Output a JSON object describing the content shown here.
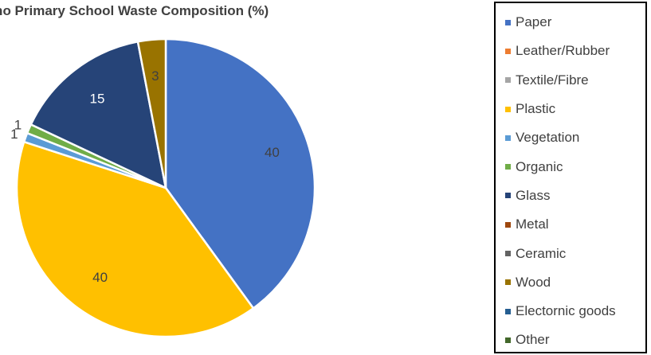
{
  "chart_data": {
    "type": "pie",
    "title": "Gocho Primary School Waste Composition (%)",
    "categories": [
      "Paper",
      "Leather/Rubber",
      "Textile/Fibre",
      "Plastic",
      "Vegetation",
      "Organic",
      "Glass",
      "Metal",
      "Ceramic",
      "Wood",
      "Electornic goods",
      "Other"
    ],
    "values": [
      40,
      0,
      0,
      40,
      1,
      1,
      15,
      0,
      0,
      3,
      0,
      0
    ],
    "colors": [
      "#4472C4",
      "#ED7D31",
      "#A5A5A5",
      "#FFC000",
      "#5B9BD5",
      "#70AD47",
      "#264478",
      "#9E480E",
      "#636363",
      "#997300",
      "#255E91",
      "#43682B"
    ],
    "data_label_color": "#404040",
    "legend_position": "right",
    "start_angle_deg": 0,
    "direction": "clockwise"
  }
}
